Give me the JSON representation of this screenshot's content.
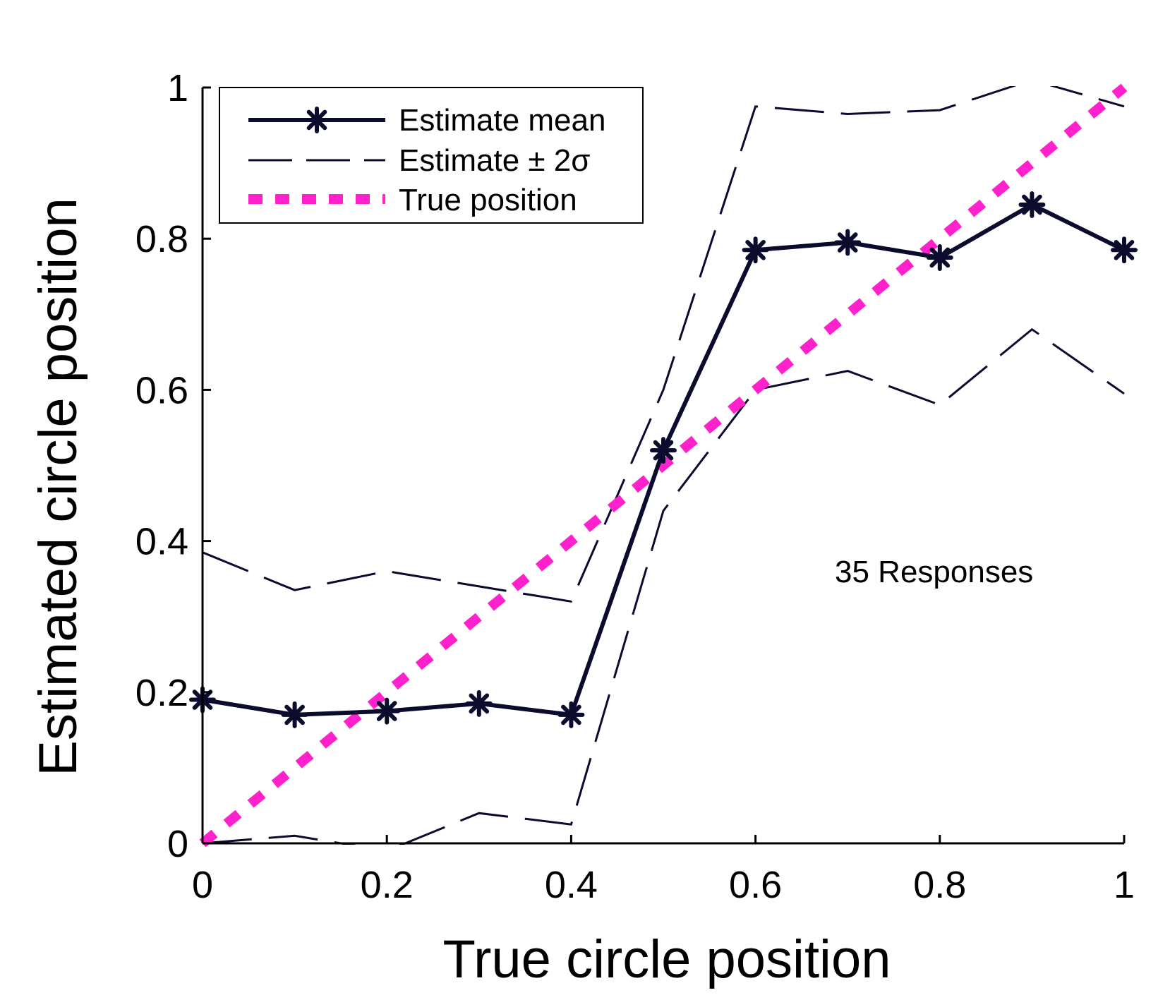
{
  "chart_data": {
    "type": "line",
    "xlabel": "True circle position",
    "ylabel": "Estimated circle position",
    "xlim": [
      0,
      1
    ],
    "ylim": [
      0,
      1
    ],
    "x_ticks": [
      "0",
      "0.2",
      "0.4",
      "0.6",
      "0.8",
      "1"
    ],
    "y_ticks": [
      "0",
      "0.2",
      "0.4",
      "0.6",
      "0.8",
      "1"
    ],
    "x": [
      0,
      0.1,
      0.2,
      0.3,
      0.4,
      0.5,
      0.6,
      0.7,
      0.8,
      0.9,
      1.0
    ],
    "series": [
      {
        "name": "Estimate mean",
        "style": "solid-star",
        "color": "#0b0b2e",
        "values": [
          0.19,
          0.17,
          0.175,
          0.185,
          0.17,
          0.52,
          0.785,
          0.795,
          0.775,
          0.845,
          0.785
        ]
      },
      {
        "name": "Estimate ± 2σ",
        "style": "dashed",
        "color": "#0b0b2e",
        "values": [
          0.385,
          0.335,
          0.36,
          0.34,
          0.32,
          0.6,
          0.975,
          0.965,
          0.97,
          1.01,
          0.975
        ]
      },
      {
        "name": "",
        "style": "dashed",
        "color": "#0b0b2e",
        "values": [
          0.0,
          0.01,
          -0.01,
          0.04,
          0.025,
          0.44,
          0.6,
          0.625,
          0.58,
          0.68,
          0.595
        ]
      },
      {
        "name": "True position",
        "style": "dotted",
        "color": "#ff22cc",
        "values": [
          0,
          0.1,
          0.2,
          0.3,
          0.4,
          0.5,
          0.6,
          0.7,
          0.8,
          0.9,
          1.0
        ]
      }
    ],
    "legend": {
      "placement": "top-left",
      "entries": [
        "Estimate mean",
        "Estimate ± 2σ",
        "True position"
      ]
    },
    "annotation": "35 Responses",
    "grid": false
  }
}
